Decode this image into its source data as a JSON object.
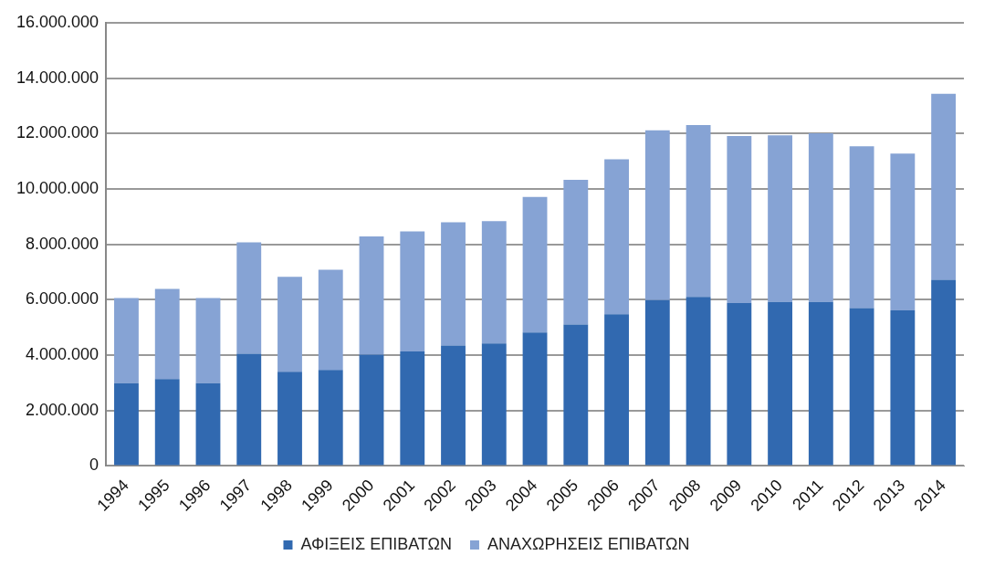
{
  "chart_data": {
    "type": "bar",
    "stacked": true,
    "categories": [
      "1994",
      "1995",
      "1996",
      "1997",
      "1998",
      "1999",
      "2000",
      "2001",
      "2002",
      "2003",
      "2004",
      "2005",
      "2006",
      "2007",
      "2008",
      "2009",
      "2010",
      "2011",
      "2012",
      "2013",
      "2014"
    ],
    "series": [
      {
        "name": "ΑΦΙΞΕΙΣ ΕΠΙΒΑΤΩΝ",
        "color": "#3169b0",
        "values": [
          2990000,
          3140000,
          2990000,
          4050000,
          3400000,
          3470000,
          4020000,
          4130000,
          4350000,
          4420000,
          4820000,
          5110000,
          5480000,
          5990000,
          6100000,
          5880000,
          5920000,
          5920000,
          5700000,
          5620000,
          6720000
        ]
      },
      {
        "name": "ΑΝΑΧΩΡΗΣΕΙΣ ΕΠΙΒΑΤΩΝ",
        "color": "#86a3d4",
        "values": [
          3070000,
          3250000,
          3070000,
          4020000,
          3430000,
          3610000,
          4270000,
          4340000,
          4450000,
          4420000,
          4890000,
          5220000,
          5590000,
          6130000,
          6210000,
          6030000,
          6020000,
          6090000,
          5840000,
          5660000,
          6720000
        ]
      }
    ],
    "ylim": [
      0,
      16000000
    ],
    "yticks": [
      0,
      {
        "value": 2000000,
        "label": "2.000.000"
      },
      {
        "value": 4000000,
        "label": "4.000.000"
      },
      {
        "value": 6000000,
        "label": "6.000.000"
      },
      {
        "value": 8000000,
        "label": "8.000.000"
      },
      {
        "value": 10000000,
        "label": "10.000.000"
      },
      {
        "value": 12000000,
        "label": "12.000.000"
      },
      {
        "value": 14000000,
        "label": "14.000.000"
      },
      {
        "value": 16000000,
        "label": "16.000.000"
      }
    ],
    "grid": "y",
    "legend": "bottom"
  }
}
